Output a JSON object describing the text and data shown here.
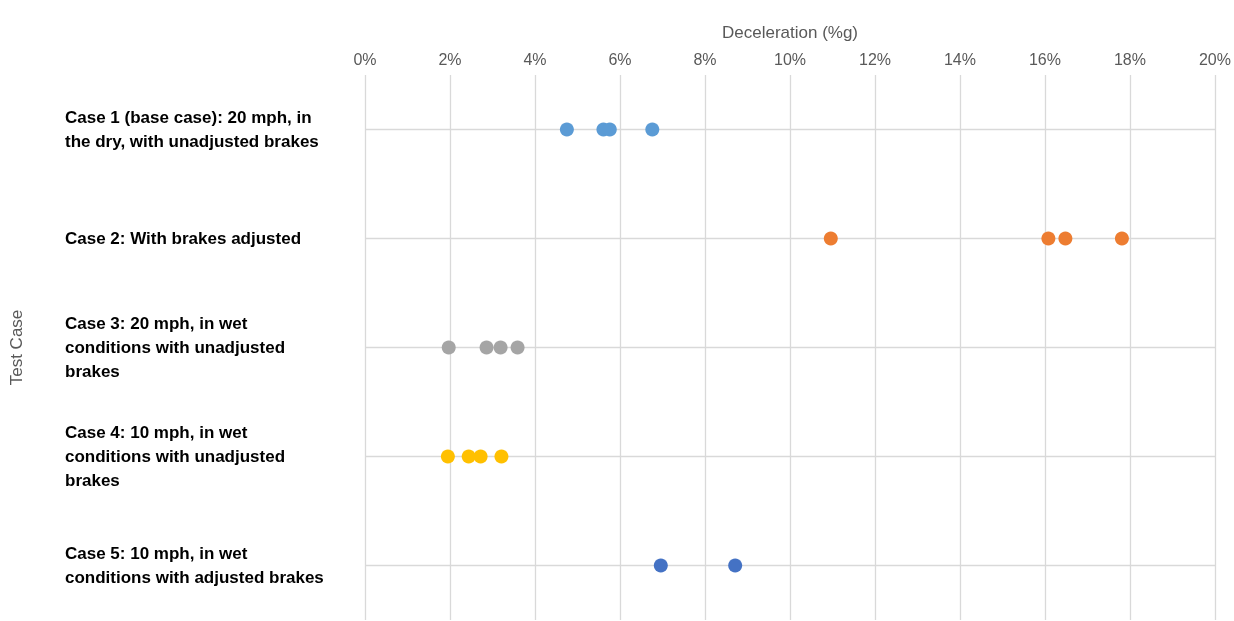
{
  "chart_data": {
    "type": "scatter",
    "orientation": "horizontal",
    "xlabel": "Deceleration (%g)",
    "ylabel": "Test Case",
    "categories": [
      "Case 1 (base case): 20 mph, in the dry, with unadjusted brakes",
      "Case 2: With brakes adjusted",
      "Case 3: 20 mph, in wet conditions with unadjusted brakes",
      "Case 4: 10 mph, in wet conditions with unadjusted brakes",
      "Case 5: 10 mph, in wet conditions with adjusted brakes"
    ],
    "series": [
      {
        "colors": [
          "#5b9bd5",
          "#ed7d31",
          "#a5a5a5",
          "#ffc000",
          "#4472c4"
        ],
        "values": [
          4.75,
          10.96,
          1.97,
          1.95,
          6.96
        ]
      },
      {
        "colors": [
          "#5b9bd5",
          "#ed7d31",
          "#a5a5a5",
          "#ffc000",
          "#4472c4"
        ],
        "values": [
          5.61,
          16.08,
          2.86,
          2.44,
          8.71
        ]
      },
      {
        "colors": [
          "#5b9bd5",
          "#ed7d31",
          "#a5a5a5",
          "#ffc000",
          null
        ],
        "values": [
          5.76,
          16.48,
          3.19,
          2.72,
          null
        ]
      },
      {
        "colors": [
          "#5b9bd5",
          "#ed7d31",
          "#a5a5a5",
          "#ffc000",
          null
        ],
        "values": [
          6.76,
          17.81,
          3.59,
          3.21,
          null
        ]
      }
    ],
    "xlim": [
      0,
      20
    ],
    "xticks": [
      {
        "value": 0,
        "label": "0%"
      },
      {
        "value": 2,
        "label": "2%"
      },
      {
        "value": 4,
        "label": "4%"
      },
      {
        "value": 6,
        "label": "6%"
      },
      {
        "value": 8,
        "label": "8%"
      },
      {
        "value": 10,
        "label": "10%"
      },
      {
        "value": 12,
        "label": "12%"
      },
      {
        "value": 14,
        "label": "14%"
      },
      {
        "value": 16,
        "label": "16%"
      },
      {
        "value": 18,
        "label": "18%"
      },
      {
        "value": 20,
        "label": "20%"
      }
    ],
    "grid": true,
    "marker": "circle"
  }
}
